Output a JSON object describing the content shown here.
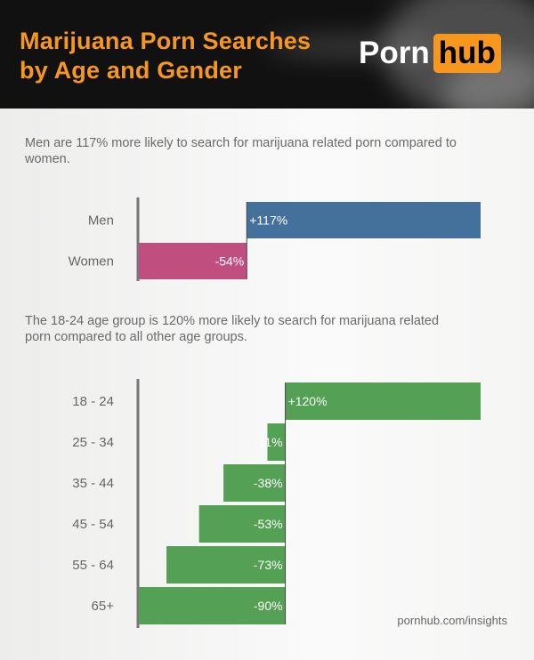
{
  "title_line1": "Marijuana Porn Searches",
  "title_line2": "by Age and Gender",
  "logo": {
    "porn": "Porn",
    "hub": "hub",
    "accent": "#f7971e"
  },
  "footer": "pornhub.com/insights",
  "chart_data": [
    {
      "type": "bar",
      "orientation": "horizontal",
      "description": "Men are 117% more likely to search for marijuana related porn compared to women.",
      "categories": [
        "Men",
        "Women"
      ],
      "values": [
        117,
        -54
      ],
      "labels": [
        "+117%",
        "-54%"
      ],
      "colors": [
        "#44709c",
        "#c04f80"
      ],
      "xlim": [
        -54,
        117
      ]
    },
    {
      "type": "bar",
      "orientation": "horizontal",
      "description": "The 18-24 age group is 120% more likely to search for marijuana related porn compared to all other age groups.",
      "categories": [
        "18 - 24",
        "25 - 34",
        "35 - 44",
        "45 - 54",
        "55 - 64",
        "65+"
      ],
      "values": [
        120,
        -11,
        -38,
        -53,
        -73,
        -90
      ],
      "labels": [
        "+120%",
        "-11%",
        "-38%",
        "-53%",
        "-73%",
        "-90%"
      ],
      "colors": [
        "#54a054"
      ],
      "xlim": [
        -90,
        120
      ]
    }
  ]
}
